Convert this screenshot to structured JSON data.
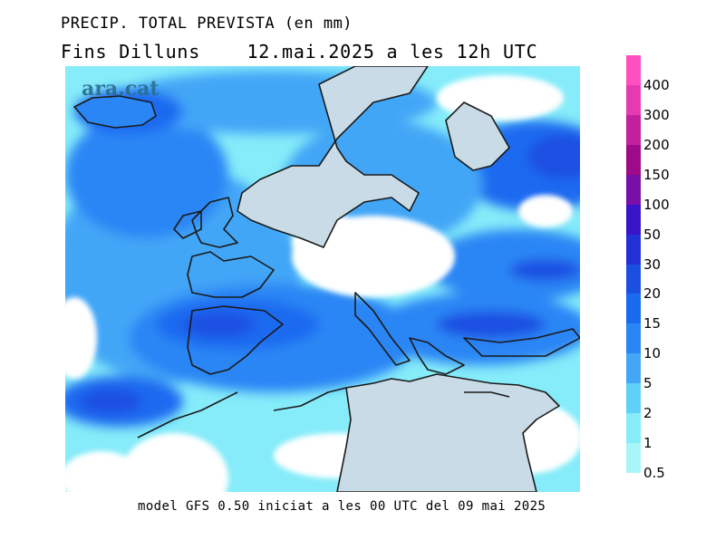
{
  "title_line1": "PRECIP. TOTAL PREVISTA (en mm)",
  "title_line2": "Fins Dilluns    12.mai.2025 a les 12h UTC",
  "footer": "model GFS 0.50 iniciat a les 00 UTC del 09 mai 2025",
  "watermark": "ara.cat",
  "legend": {
    "levels": [
      {
        "label": "400",
        "color": "#ff4fc0"
      },
      {
        "label": "300",
        "color": "#e63bb0"
      },
      {
        "label": "200",
        "color": "#c3209e"
      },
      {
        "label": "150",
        "color": "#9e0a8a"
      },
      {
        "label": "100",
        "color": "#7a0fa8"
      },
      {
        "label": "50",
        "color": "#3a14c8"
      },
      {
        "label": "30",
        "color": "#2330d6"
      },
      {
        "label": "20",
        "color": "#1a4fe2"
      },
      {
        "label": "15",
        "color": "#1a6af0"
      },
      {
        "label": "10",
        "color": "#2a86f5"
      },
      {
        "label": "5",
        "color": "#43a6f7"
      },
      {
        "label": "2",
        "color": "#5fd0f8"
      },
      {
        "label": "1",
        "color": "#86ecf9"
      },
      {
        "label": "0.5",
        "color": "#a9f6f9"
      }
    ]
  },
  "colors": {
    "land": "#c8dbe6",
    "no_precip": "#ffffff",
    "coast": "#1a1a1a"
  }
}
